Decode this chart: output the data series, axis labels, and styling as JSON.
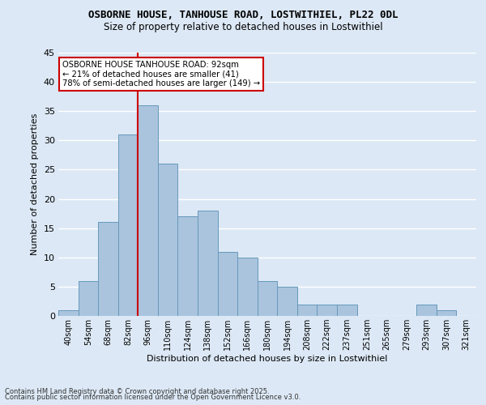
{
  "title1": "OSBORNE HOUSE, TANHOUSE ROAD, LOSTWITHIEL, PL22 0DL",
  "title2": "Size of property relative to detached houses in Lostwithiel",
  "xlabel": "Distribution of detached houses by size in Lostwithiel",
  "ylabel": "Number of detached properties",
  "bar_labels": [
    "40sqm",
    "54sqm",
    "68sqm",
    "82sqm",
    "96sqm",
    "110sqm",
    "124sqm",
    "138sqm",
    "152sqm",
    "166sqm",
    "180sqm",
    "194sqm",
    "208sqm",
    "222sqm",
    "237sqm",
    "251sqm",
    "265sqm",
    "279sqm",
    "293sqm",
    "307sqm",
    "321sqm"
  ],
  "bar_values": [
    1,
    6,
    16,
    31,
    36,
    26,
    17,
    18,
    11,
    10,
    6,
    5,
    2,
    2,
    2,
    0,
    0,
    0,
    2,
    1,
    0
  ],
  "bar_color": "#aac4de",
  "bar_edge_color": "#6699bb",
  "vline_index": 4,
  "marker_label_line1": "OSBORNE HOUSE TANHOUSE ROAD: 92sqm",
  "marker_label_line2": "← 21% of detached houses are smaller (41)",
  "marker_label_line3": "78% of semi-detached houses are larger (149) →",
  "vline_color": "#cc0000",
  "annotation_box_edge": "#cc0000",
  "ylim": [
    0,
    45
  ],
  "yticks": [
    0,
    5,
    10,
    15,
    20,
    25,
    30,
    35,
    40,
    45
  ],
  "background_color": "#dce8f5",
  "grid_color": "#ffffff",
  "footnote1": "Contains HM Land Registry data © Crown copyright and database right 2025.",
  "footnote2": "Contains public sector information licensed under the Open Government Licence v3.0."
}
